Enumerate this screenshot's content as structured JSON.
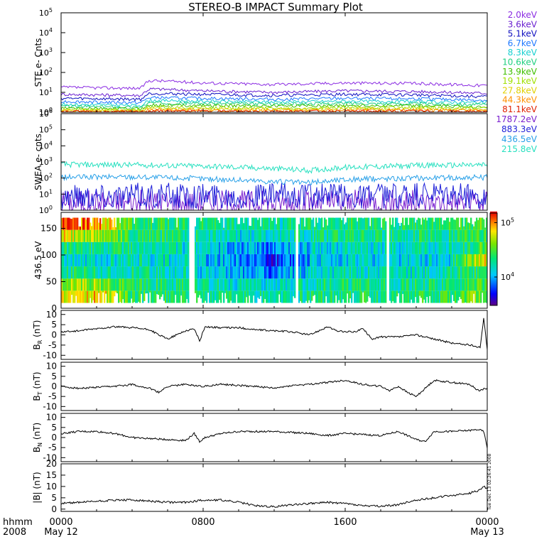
{
  "title": "STEREO-B IMPACT Summary Plot",
  "colors": {
    "ste_channels": [
      "#8a2be2",
      "#6a1fd0",
      "#1010c0",
      "#1e78ff",
      "#18d0d0",
      "#20d080",
      "#40c000",
      "#a0e000",
      "#e0d000",
      "#ff9000",
      "#e02000"
    ],
    "swea_channels": [
      "#7a1fcf",
      "#1e1ed8",
      "#28a0e8",
      "#28e0c0"
    ]
  },
  "xaxis": {
    "corner_top": "hhmm",
    "corner_bottom": "2008",
    "ticks": [
      {
        "hhmm": "0000",
        "date": "May 12",
        "hours": 0
      },
      {
        "hhmm": "0800",
        "date": "",
        "hours": 8
      },
      {
        "hhmm": "1600",
        "date": "",
        "hours": 16
      },
      {
        "hhmm": "0000",
        "date": "May 13",
        "hours": 24
      }
    ]
  },
  "side_stamp": "Tue Dec 13 02:26:41 2008",
  "chart_data": [
    {
      "type": "line",
      "ylabel": "STE e- Cnts",
      "yscale": "log",
      "ylim": [
        1,
        100000
      ],
      "ytick_labels": [
        [
          "10",
          "0"
        ],
        [
          "10",
          "1"
        ],
        [
          "10",
          "2"
        ],
        [
          "10",
          "3"
        ],
        [
          "10",
          "4"
        ],
        [
          "10",
          "5"
        ]
      ],
      "legend": [
        "2.0keV",
        "3.6keV",
        "5.1keV",
        "6.7keV",
        "8.3keV",
        "10.6keV",
        "13.9keV",
        "19.1keV",
        "27.8keV",
        "44.3keV",
        "81.1keV"
      ],
      "series_hours": [
        0,
        4.5,
        5,
        8,
        12,
        16,
        20,
        24
      ],
      "series": [
        {
          "name": "2.0keV",
          "values": [
            18,
            16,
            40,
            30,
            25,
            30,
            28,
            22
          ]
        },
        {
          "name": "3.6keV",
          "values": [
            8,
            7,
            15,
            12,
            10,
            12,
            11,
            9
          ]
        },
        {
          "name": "5.1keV",
          "values": [
            5,
            4.5,
            9,
            8,
            7,
            8,
            7.5,
            6
          ]
        },
        {
          "name": "6.7keV",
          "values": [
            3.5,
            3,
            5.5,
            5,
            4.5,
            5,
            4.8,
            4
          ]
        },
        {
          "name": "8.3keV",
          "values": [
            2.5,
            2.2,
            4,
            3.6,
            3.3,
            3.6,
            3.5,
            3
          ]
        },
        {
          "name": "10.6keV",
          "values": [
            2,
            1.8,
            3,
            2.8,
            2.6,
            2.8,
            2.7,
            2.4
          ]
        },
        {
          "name": "13.9keV",
          "values": [
            1.6,
            1.5,
            2.3,
            2.2,
            2.1,
            2.2,
            2.1,
            1.9
          ]
        },
        {
          "name": "19.1keV",
          "values": [
            1.4,
            1.3,
            1.8,
            1.7,
            1.6,
            1.7,
            1.7,
            1.6
          ]
        },
        {
          "name": "27.8keV",
          "values": [
            1.25,
            1.2,
            1.5,
            1.45,
            1.4,
            1.45,
            1.45,
            1.35
          ]
        },
        {
          "name": "44.3keV",
          "values": [
            1.12,
            1.1,
            1.3,
            1.25,
            1.2,
            1.25,
            1.25,
            1.2
          ]
        },
        {
          "name": "81.1keV",
          "values": [
            1.05,
            1.03,
            1.15,
            1.12,
            1.1,
            1.12,
            1.12,
            1.08
          ]
        }
      ]
    },
    {
      "type": "line",
      "ylabel": "SWEA e- cnts",
      "yscale": "log",
      "ylim": [
        1,
        1000000
      ],
      "ytick_labels": [
        [
          "10",
          "0"
        ],
        [
          "10",
          "1"
        ],
        [
          "10",
          "2"
        ],
        [
          "10",
          "3"
        ],
        [
          "10",
          "4"
        ],
        [
          "10",
          "5"
        ],
        [
          "10",
          "6"
        ]
      ],
      "legend": [
        "1787.2eV",
        "883.3eV",
        "436.5eV",
        "215.8eV"
      ],
      "series_hours": [
        0,
        4,
        8,
        12,
        14,
        16,
        20,
        24
      ],
      "series": [
        {
          "name": "1787.2eV",
          "values": [
            3,
            3,
            3,
            3,
            3,
            3,
            3,
            3
          ]
        },
        {
          "name": "883.3eV",
          "values": [
            8,
            8,
            8,
            8,
            8,
            8,
            8,
            8
          ]
        },
        {
          "name": "436.5eV",
          "values": [
            110,
            120,
            90,
            60,
            50,
            80,
            100,
            110
          ]
        },
        {
          "name": "215.8eV",
          "values": [
            700,
            650,
            550,
            380,
            300,
            450,
            600,
            650
          ]
        }
      ]
    },
    {
      "type": "heatmap",
      "ylabel": "436.5 eV",
      "ylim": [
        0,
        180
      ],
      "yticks": [
        0,
        50,
        100,
        150
      ],
      "colorbar": {
        "scale": "log",
        "range": [
          3000,
          150000
        ],
        "tick_labels": [
          [
            "10",
            "4"
          ],
          [
            "10",
            "5"
          ]
        ],
        "tick_values": [
          10000,
          100000
        ]
      },
      "data_range_deg": [
        10,
        170
      ],
      "note_values": "approximate intensity per time-pitch bin (log scale, counts)",
      "row_centers_deg": [
        20,
        45,
        70,
        95,
        120,
        145,
        165
      ],
      "col_hours": [
        0,
        2,
        4,
        6,
        8,
        10,
        12,
        14,
        16,
        18,
        20,
        22,
        24
      ],
      "z": [
        [
          60000,
          70000,
          25000,
          22000,
          20000,
          18000,
          16000,
          19000,
          22000,
          20000,
          21000,
          23000,
          40000
        ],
        [
          45000,
          40000,
          22000,
          20000,
          17000,
          15000,
          12000,
          17000,
          20000,
          18000,
          19000,
          20000,
          30000
        ],
        [
          20000,
          18000,
          18000,
          16000,
          12000,
          10000,
          7000,
          12000,
          15000,
          14000,
          15000,
          16000,
          25000
        ],
        [
          15000,
          14000,
          16000,
          14000,
          11000,
          8000,
          5000,
          10000,
          13000,
          12000,
          13000,
          14000,
          60000
        ],
        [
          20000,
          19000,
          18000,
          16000,
          12000,
          10000,
          8000,
          12000,
          15000,
          14000,
          15000,
          16000,
          30000
        ],
        [
          60000,
          40000,
          24000,
          20000,
          17000,
          14000,
          13000,
          17000,
          20000,
          18000,
          19000,
          20000,
          25000
        ],
        [
          120000,
          90000,
          28000,
          23000,
          20000,
          17000,
          16000,
          19000,
          22000,
          20000,
          21000,
          23000,
          30000
        ]
      ]
    },
    {
      "type": "line",
      "ylabel": [
        "B",
        "R",
        " (nT)"
      ],
      "ylim": [
        -12,
        12
      ],
      "yticks": [
        -10,
        -5,
        0,
        5,
        10
      ],
      "x_hours": [
        0,
        1,
        2,
        3,
        4,
        5,
        5.5,
        6,
        6.5,
        7,
        7.5,
        7.8,
        8.1,
        9,
        10,
        11,
        12,
        13,
        14,
        15,
        15.5,
        16,
        16.5,
        17,
        17.5,
        18,
        19,
        20,
        21,
        21.5,
        22,
        23,
        23.6,
        23.8,
        24
      ],
      "values": [
        1.5,
        2,
        3,
        4,
        3.5,
        2.5,
        0,
        -2,
        0,
        2,
        3,
        -3,
        4,
        3.5,
        3.5,
        2.5,
        2,
        1.5,
        0,
        4,
        2,
        1.5,
        1.5,
        3,
        -2,
        -1,
        -1,
        0,
        -2,
        -3,
        -4,
        -5,
        -6,
        8,
        -7
      ]
    },
    {
      "type": "line",
      "ylabel": [
        "B",
        "T",
        " (nT)"
      ],
      "ylim": [
        -12,
        12
      ],
      "yticks": [
        -10,
        -5,
        0,
        5,
        10
      ],
      "x_hours": [
        0,
        1,
        2,
        3,
        4,
        5,
        5.5,
        6,
        7,
        8,
        9,
        10,
        11,
        12,
        13,
        14,
        15,
        16,
        17,
        18,
        18.5,
        19,
        19.5,
        20,
        20.5,
        21,
        22,
        23,
        23.5,
        24
      ],
      "values": [
        0,
        -1,
        -0.5,
        0,
        1,
        -1,
        -3,
        0,
        1,
        0,
        1,
        0.5,
        0,
        -1,
        0.5,
        1,
        2,
        3,
        1,
        0,
        -2,
        0,
        -3,
        -5,
        -1,
        3,
        2,
        1,
        -2,
        -1
      ]
    },
    {
      "type": "line",
      "ylabel": [
        "B",
        "N",
        " (nT)"
      ],
      "ylim": [
        -12,
        12
      ],
      "yticks": [
        -10,
        -5,
        0,
        5,
        10
      ],
      "x_hours": [
        0,
        1,
        2,
        3,
        4,
        5,
        6,
        7,
        7.5,
        7.8,
        8.1,
        9,
        10,
        11,
        12,
        13,
        14,
        15,
        16,
        17,
        18,
        19,
        20,
        20.5,
        21,
        22,
        23,
        23.5,
        23.8,
        24
      ],
      "values": [
        2,
        3,
        3,
        2,
        0,
        -0.5,
        -1,
        -1.5,
        2,
        -2,
        0,
        2,
        3,
        3,
        3,
        2.5,
        2,
        1,
        2,
        1.5,
        1,
        3,
        -1,
        -2,
        3,
        3,
        3.5,
        4,
        3,
        -5
      ]
    },
    {
      "type": "line",
      "ylabel": "|B| (nT)",
      "ylim": [
        -1,
        20
      ],
      "yticks": [
        0,
        5,
        10,
        15,
        20
      ],
      "x_hours": [
        0,
        1,
        2,
        3,
        4,
        5,
        6,
        7,
        8,
        9,
        10,
        11,
        12,
        13,
        14,
        15,
        16,
        17,
        18,
        19,
        20,
        21,
        22,
        23,
        23.6,
        23.8,
        24
      ],
      "values": [
        2.5,
        3,
        3.5,
        4,
        4,
        3.5,
        3,
        3,
        4,
        4,
        3,
        1.5,
        1,
        2,
        2.5,
        3,
        2.5,
        1.5,
        1.2,
        2,
        4,
        5,
        6,
        7,
        8.5,
        10,
        9
      ]
    }
  ]
}
